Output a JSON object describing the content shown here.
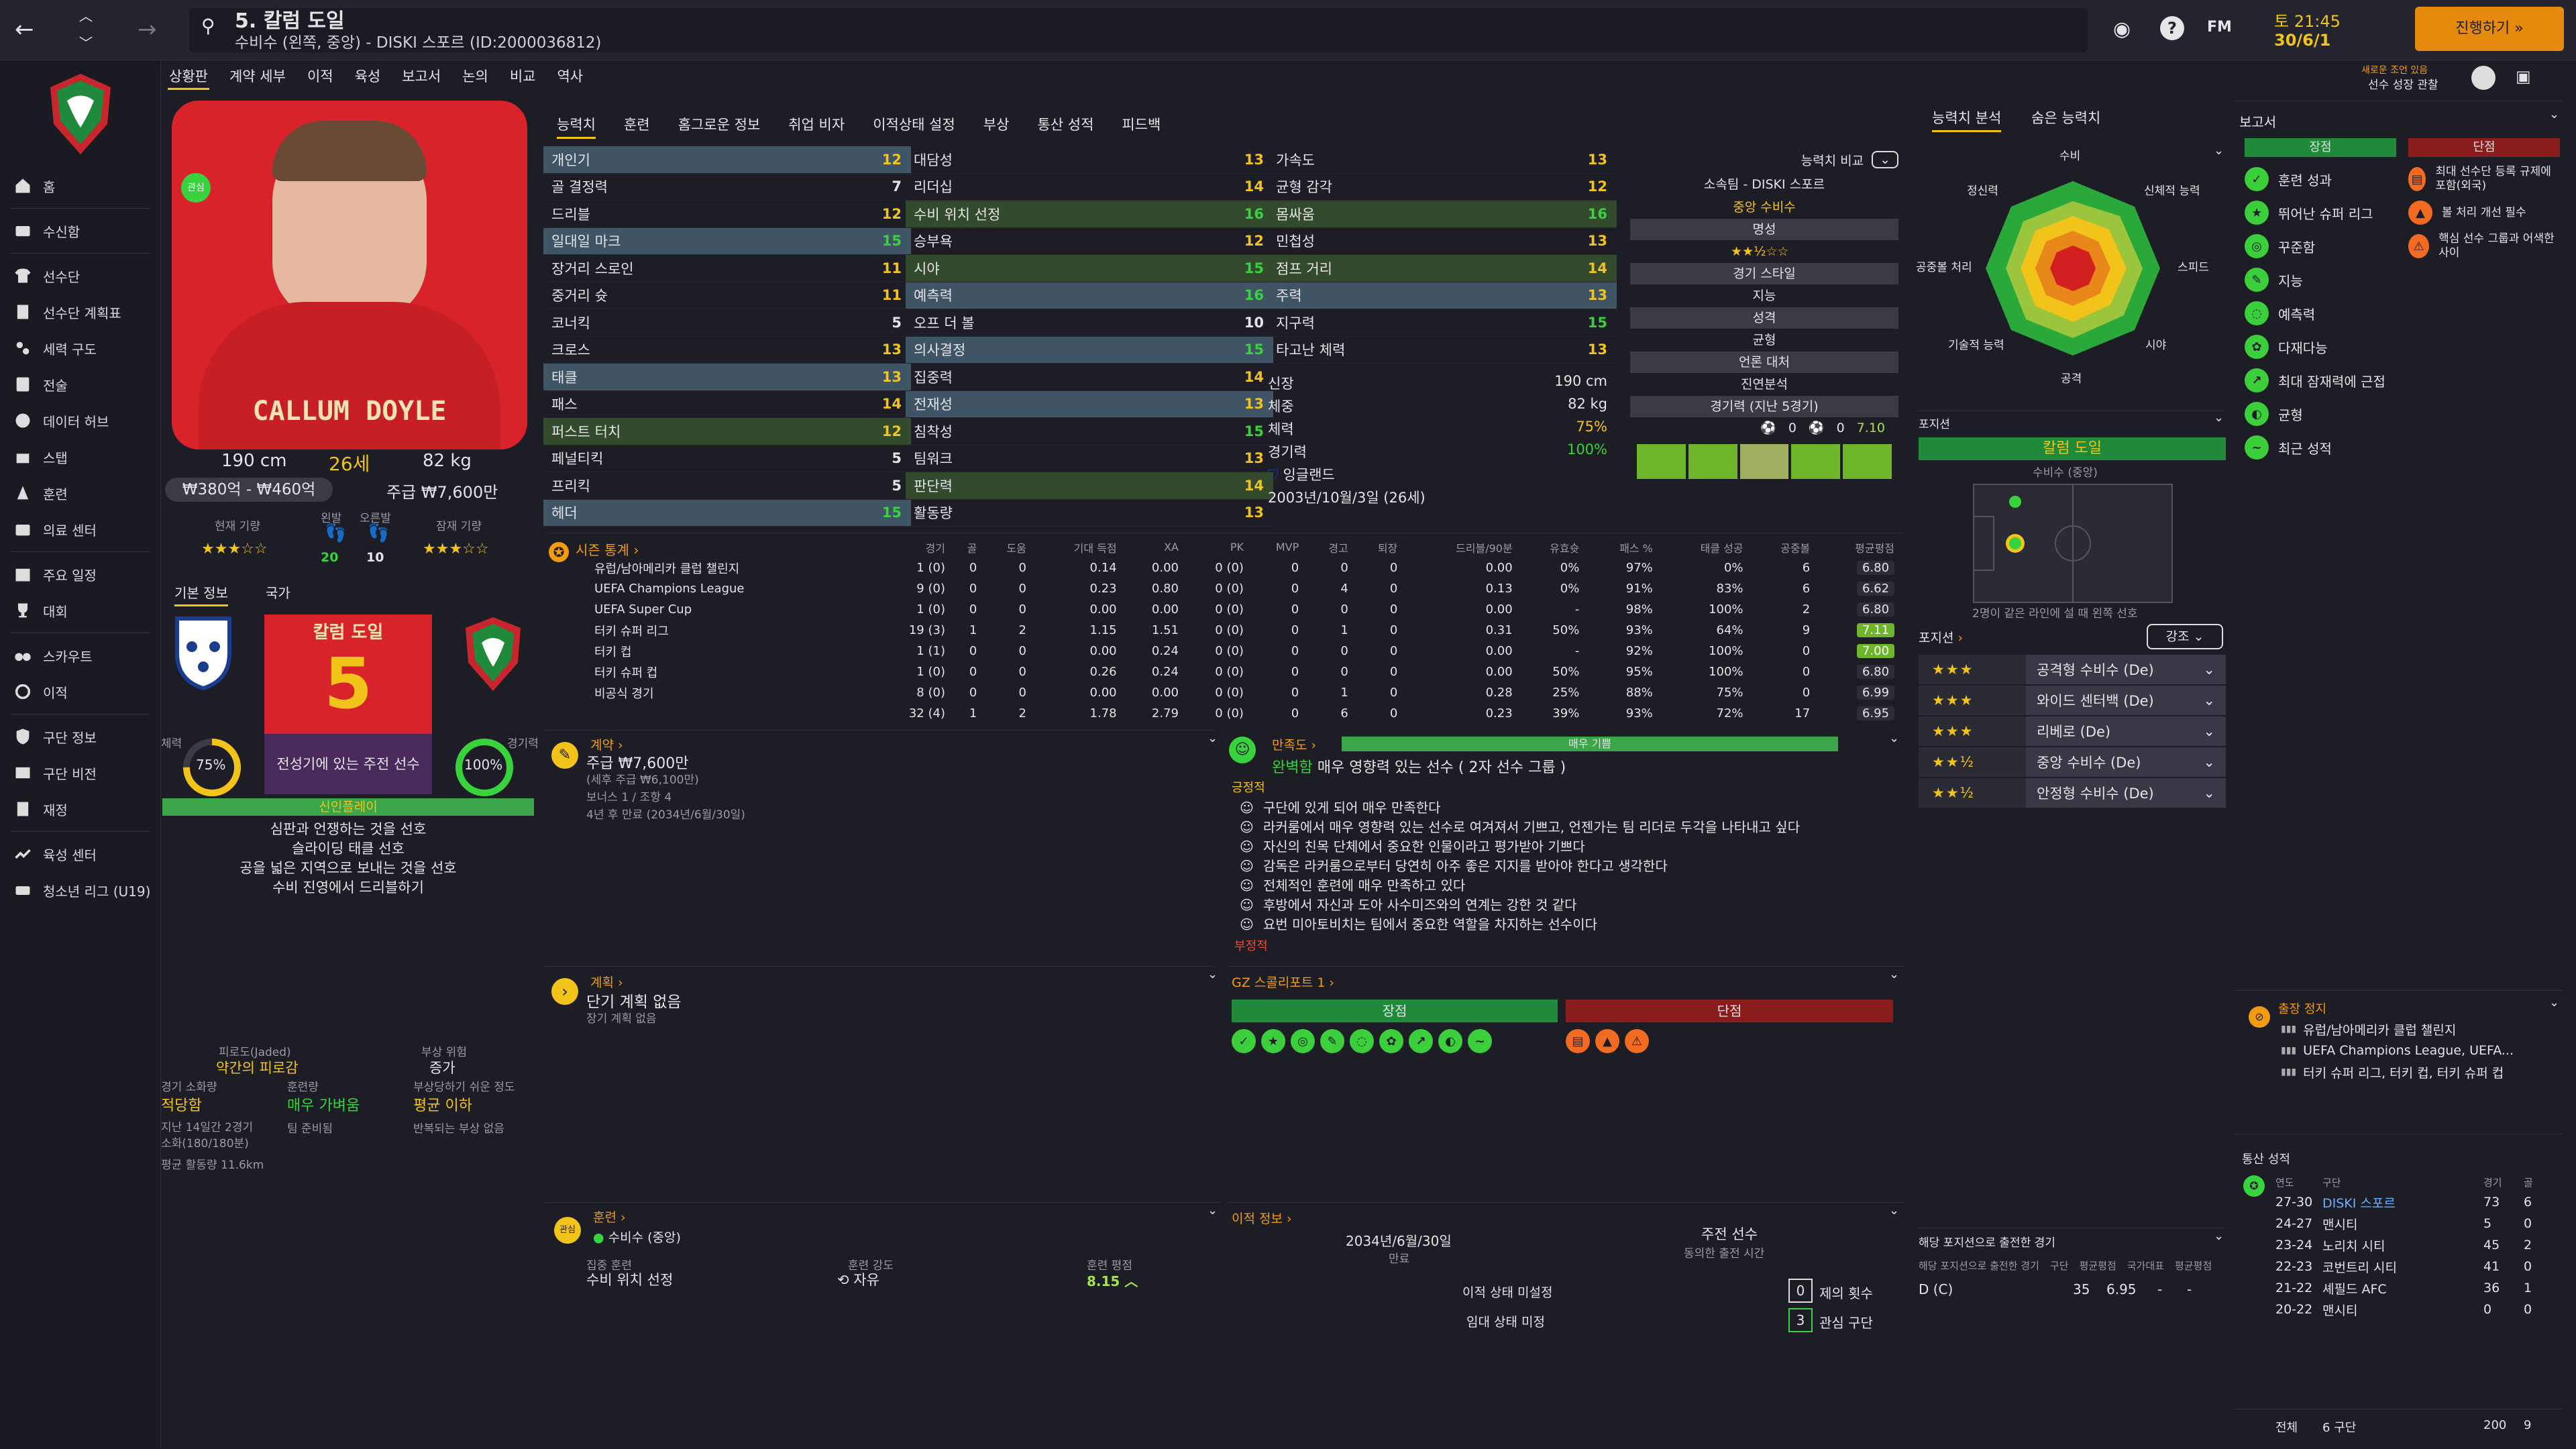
{
  "header": {
    "title": "5. 칼럼 도일",
    "subtitle": "수비수 (왼쪽, 중앙) - DISKI 스포르 (ID:2000036812)",
    "date_time": "토 21:45",
    "date": "30/6/1",
    "continue": "진행하기",
    "notice": "새로운 조언 있음",
    "notice2": "선수 성장 관찰",
    "fm": "FM",
    "question": "?"
  },
  "subnav": [
    "상황판",
    "계약 세부",
    "이적",
    "육성",
    "보고서",
    "논의",
    "비교",
    "역사"
  ],
  "tabs": [
    "능력치",
    "훈련",
    "홈그로운 정보",
    "취업 비자",
    "이적상태 설정",
    "부상",
    "통산 성적",
    "피드백"
  ],
  "sidebar": [
    "홈",
    "수신함",
    "선수단",
    "선수단 계획표",
    "세력 구도",
    "전술",
    "데이터 허브",
    "스탭",
    "훈련",
    "의료 센터",
    "주요 일정",
    "대회",
    "스카우트",
    "이적",
    "구단 정보",
    "구단 비전",
    "재정",
    "육성 센터",
    "청소년 리그 (U19)"
  ],
  "player": {
    "shirt_name": "CALLUM DOYLE",
    "height": "190 cm",
    "age": "26세",
    "weight": "82 kg",
    "value": "₩380억 - ₩460억",
    "wage": "주급 ₩7,600만",
    "current_ability": "현재 기량",
    "left_foot": "왼발",
    "right_foot": "오른발",
    "left_val": "20",
    "right_val": "10",
    "potential": "잠재 기량",
    "badge": "관심"
  },
  "basic": {
    "tab1": "기본 정보",
    "tab2": "국가",
    "name": "칼럼 도일",
    "number": "5",
    "role": "전성기에 있는 주전 선수",
    "fitness_label": "체력",
    "fitness": "75%",
    "match_label": "경기력",
    "match": "100%",
    "personality": "신인플레이",
    "traits": [
      "심판과 언쟁하는 것을 선호",
      "슬라이딩 태클 선호",
      "공을 넓은 지역으로 보내는 것을 선호",
      "수비 진영에서 드리블하기"
    ]
  },
  "condition": {
    "fatigue_label": "피로도(Jaded)",
    "fatigue": "약간의 피로감",
    "injury_risk_label": "부상 위험",
    "injury_risk": "증가",
    "load_label": "경기 소화량",
    "load": "적당함",
    "train_label": "훈련량",
    "train": "매우 가벼움",
    "prone_label": "부상당하기 쉬운 정도",
    "prone": "평균 이하",
    "note1": "지난 14일간 2경기",
    "note2": "소화(180/180분)",
    "note3": "팀 준비됨",
    "note4": "반복되는 부상 없음",
    "dist": "평균 활동량 11.6km"
  },
  "attributes": {
    "tech": [
      [
        "개인기",
        "12"
      ],
      [
        "골 결정력",
        "7"
      ],
      [
        "드리블",
        "12"
      ],
      [
        "일대일 마크",
        "15"
      ],
      [
        "장거리 스로인",
        "11"
      ],
      [
        "중거리 슛",
        "11"
      ],
      [
        "코너킥",
        "5"
      ],
      [
        "크로스",
        "13"
      ],
      [
        "태클",
        "13"
      ],
      [
        "패스",
        "14"
      ],
      [
        "퍼스트 터치",
        "12"
      ],
      [
        "페널티킥",
        "5"
      ],
      [
        "프리킥",
        "5"
      ],
      [
        "헤더",
        "15"
      ]
    ],
    "ment": [
      [
        "대담성",
        "13"
      ],
      [
        "리더십",
        "14"
      ],
      [
        "수비 위치 선정",
        "16"
      ],
      [
        "승부욕",
        "12"
      ],
      [
        "시야",
        "15"
      ],
      [
        "예측력",
        "16"
      ],
      [
        "오프 더 볼",
        "10"
      ],
      [
        "의사결정",
        "15"
      ],
      [
        "집중력",
        "14"
      ],
      [
        "전재성",
        "13"
      ],
      [
        "침착성",
        "15"
      ],
      [
        "팀워크",
        "13"
      ],
      [
        "판단력",
        "14"
      ],
      [
        "활동량",
        "13"
      ]
    ],
    "phys": [
      [
        "가속도",
        "13"
      ],
      [
        "균형 감각",
        "12"
      ],
      [
        "몸싸움",
        "16"
      ],
      [
        "민첩성",
        "13"
      ],
      [
        "점프 거리",
        "14"
      ],
      [
        "주력",
        "13"
      ],
      [
        "지구력",
        "15"
      ],
      [
        "타고난 체력",
        "13"
      ]
    ]
  },
  "bio": {
    "height_label": "신장",
    "height": "190 cm",
    "weight_label": "체중",
    "weight": "82 kg",
    "fit_label": "체력",
    "fit": "75%",
    "match_label": "경기력",
    "match": "100%",
    "nation": "잉글랜드",
    "dob": "2003년/10월/3일 (26세)"
  },
  "compare": {
    "label": "능력치 비교",
    "club": "소속팀 - DISKI 스포르",
    "position": "중앙 수비수",
    "rep_label": "명성",
    "style_label": "경기 스타일",
    "style": "지능",
    "personality_label": "성격",
    "personality": "균형",
    "media_label": "언론 대처",
    "media": "진연분석",
    "form_label": "경기력 (지난 5경기)",
    "goals": "0",
    "assists": "0",
    "avg": "7.10"
  },
  "stats": {
    "title": "시즌 통계",
    "head": [
      "경기",
      "골",
      "도움",
      "기대 득점",
      "XA",
      "PK",
      "MVP",
      "경고",
      "퇴장",
      "드리블/90분",
      "유효슛",
      "패스 %",
      "태클 성공",
      "공중볼",
      "평균평점"
    ],
    "rows": [
      [
        "유럽/남아메리카 클럽 챌린지",
        "1 (0)",
        "0",
        "0",
        "0.14",
        "0.00",
        "0 (0)",
        "0",
        "0",
        "0",
        "0.00",
        "0%",
        "97%",
        "0%",
        "6",
        "6.80"
      ],
      [
        "UEFA Champions League",
        "9 (0)",
        "0",
        "0",
        "0.23",
        "0.80",
        "0 (0)",
        "0",
        "4",
        "0",
        "0.13",
        "0%",
        "91%",
        "83%",
        "6",
        "6.62"
      ],
      [
        "UEFA Super Cup",
        "1 (0)",
        "0",
        "0",
        "0.00",
        "0.00",
        "0 (0)",
        "0",
        "0",
        "0",
        "0.00",
        "-",
        "98%",
        "100%",
        "2",
        "6.80"
      ],
      [
        "터키 슈퍼 리그",
        "19 (3)",
        "1",
        "2",
        "1.15",
        "1.51",
        "0 (0)",
        "0",
        "1",
        "0",
        "0.31",
        "50%",
        "93%",
        "64%",
        "9",
        "7.11"
      ],
      [
        "터키 컵",
        "1 (1)",
        "0",
        "0",
        "0.00",
        "0.24",
        "0 (0)",
        "0",
        "0",
        "0",
        "0.00",
        "-",
        "92%",
        "100%",
        "0",
        "7.00"
      ],
      [
        "터키 슈퍼 컵",
        "1 (0)",
        "0",
        "0",
        "0.26",
        "0.24",
        "0 (0)",
        "0",
        "0",
        "0",
        "0.00",
        "50%",
        "95%",
        "100%",
        "0",
        "6.80"
      ],
      [
        "비공식 경기",
        "8 (0)",
        "0",
        "0",
        "0.00",
        "0.00",
        "0 (0)",
        "0",
        "1",
        "0",
        "0.28",
        "25%",
        "88%",
        "75%",
        "0",
        "6.99"
      ],
      [
        "",
        "32 (4)",
        "1",
        "2",
        "1.78",
        "2.79",
        "0 (0)",
        "0",
        "6",
        "0",
        "0.23",
        "39%",
        "93%",
        "72%",
        "17",
        "6.95"
      ]
    ]
  },
  "contract": {
    "title": "계약",
    "wage": "주급 ₩7,600만",
    "wage_sub": "(세후 주급 ₩6,100만)",
    "bonus": "보너스 1 / 조항 4",
    "expiry": "4년 후 만료 (2034년/6월/30일)"
  },
  "happy": {
    "title": "만족도",
    "state": "완벽함",
    "desc": "매우 영향력 있는 선수 ( 2자 선수 그룹 )",
    "bar": "매우 기쁨",
    "positive": "긍정적",
    "negative": "부정적",
    "items": [
      "구단에 있게 되어 매우 만족한다",
      "라커룸에서 매우 영향력 있는 선수로 여겨져서 기쁘고, 언젠가는 팀 리더로 두각을 나타내고 싶다",
      "자신의 친목 단체에서 중요한 인물이라고 평가받아 기쁘다",
      "감독은 라커룸으로부터 당연히 아주 좋은 지지를 받아야 한다고 생각한다",
      "전체적인 훈련에 매우 만족하고 있다",
      "후방에서 자신과 도아 사수미즈와의 연계는 강한 것 같다",
      "요번 미아토비치는 팀에서 중요한 역할을 차지하는 선수이다"
    ]
  },
  "plan": {
    "title": "계획",
    "short": "단기 계획 없음",
    "long": "장기 계획 없음"
  },
  "scout": {
    "title": "GZ 스콜리포트 1",
    "strength": "장점",
    "weakness": "단점"
  },
  "training": {
    "title": "훈련",
    "role": "수비수 (중앙)",
    "focus_label": "집중 훈련",
    "focus": "수비 위치 선정",
    "intensity_label": "훈련 강도",
    "intensity": "자유",
    "rating_label": "훈련 평점",
    "rating": "8.15"
  },
  "transfer": {
    "title": "이적 정보",
    "date": "2034년/6월/30일",
    "date_label": "만료",
    "squad": "주전 선수",
    "squad_sub": "동의한 출전 시간",
    "status1": "이적 상태 미설정",
    "status2": "임대 상태 미정",
    "offers_n": "0",
    "offers": "제의 횟수",
    "clubs_n": "3",
    "clubs": "관심 구단"
  },
  "right": {
    "tab1": "능력치 분석",
    "tab2": "숨은 능력치",
    "axes": [
      "수비",
      "신체적 능력",
      "스피드",
      "시야",
      "공격",
      "기술적 능력",
      "공중볼 처리",
      "정신력"
    ],
    "position_title": "포지션",
    "pos_name": "칼럼 도일",
    "pos_desc": "수비수 (중앙)",
    "pos_note": "2명이 같은 라인에 설 때 왼쪽 선호",
    "roles_title": "포지션",
    "emphasis": "강조",
    "roles": [
      [
        "★★★",
        "공격형 수비수 (De)",
        "3"
      ],
      [
        "★★★",
        "와이드 센터백 (De)",
        "3"
      ],
      [
        "★★★",
        "리베로 (De)",
        "3"
      ],
      [
        "★★½",
        "중앙 수비수 (De)",
        "2.5"
      ],
      [
        "★★½",
        "안정형 수비수 (De)",
        "2.5"
      ]
    ],
    "apps_title": "해당 포지션으로 출전한 경기",
    "apps_head": [
      "해당 포지션으로 출전한 경기",
      "구단",
      "평균평점",
      "국가대표",
      "평균평점"
    ],
    "apps_row": [
      "D (C)",
      "35",
      "6.95",
      "-",
      "-"
    ]
  },
  "report": {
    "title": "보고서",
    "strengths_label": "장점",
    "weaknesses_label": "단점",
    "strengths": [
      "훈련 성과",
      "뛰어난 슈퍼 리그",
      "꾸준함",
      "지능",
      "예측력",
      "다재다능",
      "최대 잠재력에 근접",
      "균형",
      "최근 성적"
    ],
    "weaknesses": [
      "최대 선수단 등록 규제에 포함(외국)",
      "볼 처리 개선 필수",
      "핵심 선수 그룹과 어색한 사이"
    ]
  },
  "suspension": {
    "title": "출장 정지",
    "items": [
      "유럽/남아메리카 클럽 챌린지",
      "UEFA Champions League, UEFA...",
      "터키 슈퍼 리그, 터키 컵, 터키 슈퍼 컵"
    ]
  },
  "career": {
    "title": "통산 성적",
    "head": [
      "연도",
      "구단",
      "경기",
      "골"
    ],
    "rows": [
      [
        "27-30",
        "DISKI 스포르",
        "73",
        "6"
      ],
      [
        "24-27",
        "맨시티",
        "5",
        "0"
      ],
      [
        "23-24",
        "노리치 시티",
        "45",
        "2"
      ],
      [
        "22-23",
        "코번트리 시티",
        "41",
        "0"
      ],
      [
        "21-22",
        "셰필드 AFC",
        "36",
        "1"
      ],
      [
        "20-22",
        "맨시티",
        "0",
        "0"
      ]
    ],
    "total_label": "전체",
    "total_clubs": "6 구단",
    "total_apps": "200",
    "total_goals": "9"
  },
  "colors": {
    "accent": "#f2c318",
    "green": "#38d23c",
    "red": "#c0392b",
    "orange": "#e88a1a"
  }
}
